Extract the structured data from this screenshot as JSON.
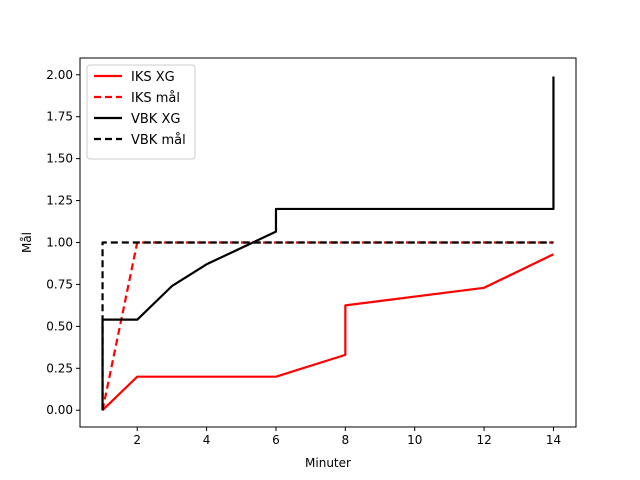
{
  "chart_data": {
    "type": "line",
    "title": "",
    "xlabel": "Minuter",
    "ylabel": "Mål",
    "xlim": [
      0.35,
      14.65
    ],
    "ylim": [
      -0.1,
      2.1
    ],
    "xticks": [
      2,
      4,
      6,
      8,
      10,
      12,
      14
    ],
    "yticks": [
      0.0,
      0.25,
      0.5,
      0.75,
      1.0,
      1.25,
      1.5,
      1.75,
      2.0
    ],
    "ytick_labels": [
      "0.00",
      "0.25",
      "0.50",
      "0.75",
      "1.00",
      "1.25",
      "1.50",
      "1.75",
      "2.00"
    ],
    "grid": false,
    "legend_position": "top-left",
    "series": [
      {
        "name": "IKS XG",
        "color": "#ff0000",
        "dash": "solid",
        "x": [
          1,
          2,
          6,
          8,
          8,
          12,
          14
        ],
        "y": [
          0.0,
          0.2,
          0.2,
          0.33,
          0.625,
          0.73,
          0.93
        ]
      },
      {
        "name": "IKS mål",
        "color": "#ff0000",
        "dash": "dashed",
        "x": [
          1,
          2,
          14
        ],
        "y": [
          0.0,
          1.0,
          1.0
        ]
      },
      {
        "name": "VBK XG",
        "color": "#000000",
        "dash": "solid",
        "x": [
          1,
          1,
          2,
          3,
          4,
          6,
          6,
          14,
          14
        ],
        "y": [
          0.0,
          0.54,
          0.54,
          0.74,
          0.87,
          1.065,
          1.2,
          1.2,
          1.99
        ]
      },
      {
        "name": "VBK mål",
        "color": "#000000",
        "dash": "dashed",
        "x": [
          1,
          1,
          14
        ],
        "y": [
          0.0,
          1.0,
          1.0
        ]
      }
    ]
  }
}
